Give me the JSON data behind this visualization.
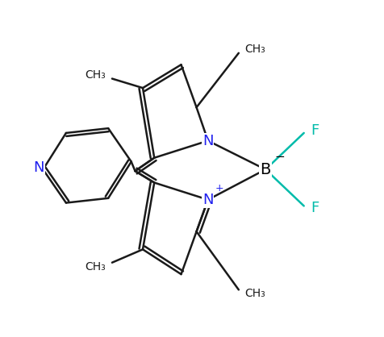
{
  "bg_color": "#ffffff",
  "bond_color": "#1a1a1a",
  "N_color": "#2020ee",
  "B_color": "#1a1a1a",
  "F_color": "#00bbaa",
  "line_width": 1.8,
  "figsize": [
    4.76,
    4.18
  ],
  "dpi": 100,
  "xlim": [
    -4.2,
    5.0
  ],
  "ylim": [
    -4.0,
    4.2
  ]
}
